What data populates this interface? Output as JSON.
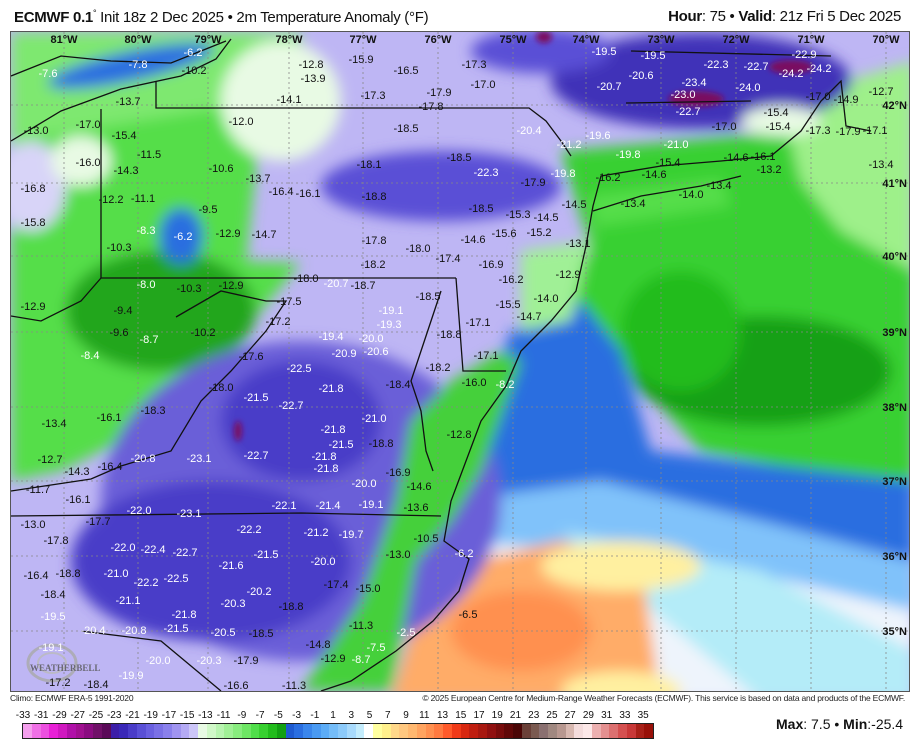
{
  "header": {
    "model": "ECMWF 0.1",
    "degree": "°",
    "init": " Init 18z 2 Dec 2025 • 2m Temperature Anomaly (°F)",
    "hour_label": "Hour",
    "hour_value": ": 75 • ",
    "valid_label": "Valid",
    "valid_value": ": 21z Fri 5 Dec 2025"
  },
  "map": {
    "longitudes": [
      "81°W",
      "80°W",
      "79°W",
      "78°W",
      "77°W",
      "76°W",
      "75°W",
      "74°W",
      "73°W",
      "72°W",
      "71°W",
      "70°W"
    ],
    "latitudes": [
      "42°N",
      "41°N",
      "40°N",
      "39°N",
      "38°N",
      "37°N",
      "36°N",
      "35°N"
    ],
    "labels": [
      "-7.6",
      "-7.8",
      "-6.2",
      "-10.2",
      "-13.7",
      "-14.1",
      "-13.0",
      "-17.0",
      "-15.4",
      "-12.0",
      "-11.5",
      "-16.0",
      "-14.3",
      "-10.6",
      "-13.7",
      "-16.8",
      "-16.4",
      "-16.1",
      "-12.2",
      "-11.1",
      "-9.5",
      "-15.8",
      "-8.3",
      "-6.2",
      "-12.9",
      "-14.7",
      "-10.3",
      "-12.8",
      "-13.9",
      "-15.9",
      "-16.5",
      "-17.3",
      "-17.0",
      "-17.3",
      "-17.9",
      "-17.8",
      "-18.5",
      "-20.4",
      "-21.2",
      "-19.6",
      "-18.1",
      "-18.5",
      "-22.3",
      "-19.8",
      "-17.9",
      "-18.8",
      "-18.5",
      "-15.3",
      "-14.5",
      "-15.2",
      "-15.6",
      "-14.6",
      "-17.8",
      "-18.0",
      "-13.1",
      "-14.5",
      "-16.2",
      "-19.5",
      "-19.5",
      "-22.9",
      "-24.2",
      "-22.3",
      "-22.7",
      "-24.2",
      "-20.6",
      "-20.7",
      "-23.0",
      "-23.4",
      "-24.0",
      "-17.0",
      "-14.9",
      "-12.7",
      "-22.7",
      "-15.4",
      "-17.0",
      "-15.4",
      "-17.3",
      "-17.9",
      "-17.1",
      "-21.0",
      "-19.8",
      "-15.4",
      "-14.6",
      "-14.6",
      "-16.1",
      "-13.2",
      "-13.4",
      "-13.4",
      "-14.0",
      "-13.4",
      "-8.0",
      "-10.3",
      "-12.9",
      "-18.0",
      "-12.9",
      "-17.5",
      "-9.4",
      "-17.2",
      "-9.6",
      "-10.2",
      "-8.7",
      "-8.4",
      "-17.6",
      "-22.5",
      "-18.0",
      "-21.5",
      "-22.7",
      "-18.3",
      "-16.1",
      "-13.4",
      "-20.8",
      "-23.1",
      "-22.7",
      "-12.7",
      "-16.4",
      "-14.3",
      "-18.2",
      "-17.4",
      "-16.9",
      "-20.7",
      "-18.7",
      "-16.2",
      "-12.9",
      "-18.5",
      "-19.1",
      "-19.3",
      "-15.5",
      "-14.0",
      "-14.7",
      "-17.1",
      "-19.4",
      "-20.0",
      "-18.8",
      "-20.6",
      "-20.9",
      "-17.1",
      "-18.2",
      "-21.8",
      "-18.4",
      "-16.0",
      "-8.2",
      "-21.0",
      "-12.8",
      "-21.8",
      "-21.5",
      "-18.8",
      "-21.8",
      "-21.8",
      "-16.9",
      "-11.7",
      "-16.1",
      "-22.0",
      "-23.1",
      "-22.1",
      "-13.0",
      "-17.7",
      "-22.2",
      "-17.8",
      "-22.0",
      "-22.4",
      "-22.7",
      "-21.5",
      "-21.6",
      "-16.4",
      "-18.8",
      "-21.0",
      "-22.2",
      "-22.5",
      "-20.2",
      "-18.4",
      "-21.1",
      "-20.3",
      "-18.8",
      "-19.5",
      "-21.8",
      "-20.4",
      "-20.8",
      "-21.5",
      "-20.5",
      "-18.5",
      "-19.1",
      "-20.0",
      "-20.3",
      "-17.9",
      "-19.9",
      "-17.2",
      "-18.4",
      "-16.6",
      "-11.3",
      "-20.0",
      "-14.6",
      "-13.6",
      "-21.4",
      "-19.1",
      "-21.2",
      "-19.7",
      "-10.5",
      "-13.0",
      "-6.2",
      "-20.0",
      "-17.4",
      "-15.0",
      "-6.5",
      "-11.3",
      "-2.5",
      "-7.5",
      "-8.7",
      "-14.8",
      "-12.9"
    ]
  },
  "logo": {
    "text": "WEATHERBELL"
  },
  "footer": {
    "climo": "Climo: ECMWF ERA-5 1991-2020",
    "copyright": "© 2025 European Centre for Medium-Range Weather Forecasts (ECMWF). This service is based on data and products of the ECMWF."
  },
  "colorbar": {
    "unit": "°F",
    "labels": [
      "-33",
      "-31",
      "-29",
      "-27",
      "-25",
      "-23",
      "-21",
      "-19",
      "-17",
      "-15",
      "-13",
      "-11",
      "-9",
      "-7",
      "-5",
      "-3",
      "-1",
      "1",
      "3",
      "5",
      "7",
      "9",
      "11",
      "13",
      "15",
      "17",
      "19",
      "21",
      "23",
      "25",
      "27",
      "29",
      "31",
      "33",
      "35"
    ],
    "colors": [
      "#f5a0ee",
      "#f070e6",
      "#ec50e0",
      "#e820d6",
      "#d018c0",
      "#b010a8",
      "#a01090",
      "#8a0c80",
      "#701068",
      "#5a0a58",
      "#3c1ea8",
      "#3a28b8",
      "#4a3cc8",
      "#5a50d6",
      "#6a60e0",
      "#7a70e6",
      "#8a80ec",
      "#a094f0",
      "#b4aaf4",
      "#ccc6f8",
      "#e8fae4",
      "#d0f8c8",
      "#b8f4b0",
      "#a0f096",
      "#88ec7e",
      "#6ee664",
      "#50de4a",
      "#38d030",
      "#22bc1c",
      "#12a012",
      "#1e5ad0",
      "#2a6ee0",
      "#3a86ec",
      "#4a9af2",
      "#5cacf6",
      "#74bcf8",
      "#8ccafa",
      "#a8dafc",
      "#c4ecfc",
      "#ffffff",
      "#ffffa0",
      "#fff08c",
      "#ffd88a",
      "#ffc880",
      "#ffb870",
      "#ffa460",
      "#ff9050",
      "#ff7a40",
      "#ff5a2a",
      "#f03a18",
      "#d82810",
      "#c01e10",
      "#a81810",
      "#901010",
      "#780c0c",
      "#600808",
      "#4a0606",
      "#6a4038",
      "#7a5a50",
      "#8a7070",
      "#a08880",
      "#b89890",
      "#d8b8b0",
      "#f4dcdc",
      "#fce8e8",
      "#ecb0b0",
      "#e49090",
      "#dc7070",
      "#d45050",
      "#c83838",
      "#a82018",
      "#981008"
    ]
  },
  "stats": {
    "max_label": "Max",
    "max_value": ": 7.5 • ",
    "min_label": "Min",
    "min_value": ":-25.4"
  }
}
